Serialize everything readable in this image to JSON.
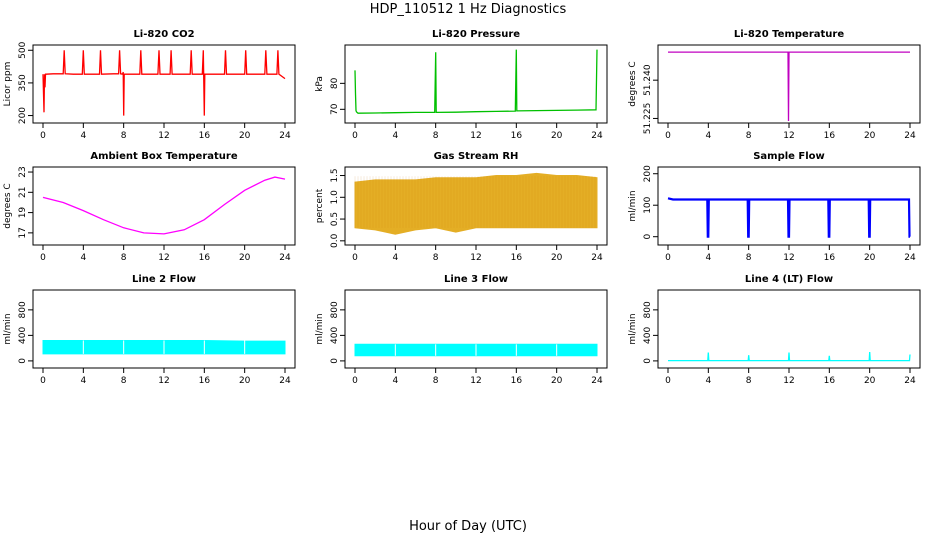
{
  "title": "HDP_110512  1 Hz Diagnostics",
  "xlabel": "Hour of Day (UTC)",
  "chart_data": [
    {
      "type": "line",
      "title": "Li-820 CO2",
      "ylabel": "Licor ppm",
      "xlim": [
        0,
        24
      ],
      "ylim": [
        175,
        515
      ],
      "xticks": [
        0,
        4,
        8,
        12,
        16,
        20,
        24
      ],
      "yticks": [
        200,
        350,
        500
      ],
      "ytick_labels": [
        "200",
        "350",
        "500"
      ],
      "color": "#ff0000",
      "series": [
        {
          "x": [
            0,
            0.1,
            0.15,
            0.2,
            0.25,
            0.3,
            1.0,
            2.0,
            2.1,
            2.2,
            3.0,
            3.9,
            4.0,
            4.1,
            5.0,
            5.6,
            5.7,
            5.8,
            7.0,
            7.5,
            7.6,
            7.7,
            7.9,
            7.95,
            8.0,
            8.05,
            9.0,
            9.6,
            9.7,
            9.8,
            11.0,
            11.4,
            11.5,
            11.6,
            12.6,
            12.7,
            12.8,
            14.0,
            14.6,
            14.7,
            14.8,
            15.8,
            15.9,
            16.0,
            16.05,
            17.0,
            18.0,
            18.1,
            18.2,
            19.5,
            20.0,
            20.1,
            20.2,
            21.0,
            22.0,
            22.1,
            22.2,
            23.2,
            23.3,
            23.4,
            24.0
          ],
          "y": [
            390,
            215,
            390,
            330,
            390,
            390,
            392,
            392,
            500,
            392,
            390,
            390,
            500,
            390,
            390,
            390,
            500,
            390,
            392,
            392,
            500,
            392,
            390,
            400,
            200,
            390,
            390,
            390,
            500,
            390,
            390,
            390,
            500,
            390,
            390,
            500,
            390,
            390,
            390,
            500,
            390,
            390,
            500,
            200,
            390,
            390,
            390,
            500,
            390,
            390,
            390,
            500,
            390,
            390,
            390,
            500,
            390,
            390,
            500,
            390,
            370
          ]
        }
      ]
    },
    {
      "type": "line",
      "title": "Li-820 Pressure",
      "ylabel": "kPa",
      "xlim": [
        0,
        24
      ],
      "ylim": [
        65.5,
        94
      ],
      "xticks": [
        0,
        4,
        8,
        12,
        16,
        20,
        24
      ],
      "yticks": [
        70,
        80
      ],
      "ytick_labels": [
        "70",
        "80"
      ],
      "color": "#00c000",
      "series": [
        {
          "x": [
            0,
            0.05,
            0.1,
            0.15,
            0.3,
            2,
            4,
            6,
            7.9,
            8.0,
            8.05,
            10,
            12,
            14,
            15.9,
            16.0,
            16.05,
            18,
            20,
            22,
            23.9,
            24.0
          ],
          "y": [
            85,
            76,
            69.5,
            69,
            68.5,
            68.6,
            68.7,
            68.8,
            68.8,
            92,
            68.8,
            68.9,
            69.1,
            69.2,
            69.3,
            93,
            69.4,
            69.5,
            69.6,
            69.7,
            69.8,
            93
          ]
        }
      ]
    },
    {
      "type": "line",
      "title": "Li-820 Temperature",
      "ylabel": "degrees C",
      "xlim": [
        0,
        24
      ],
      "ylim": [
        51.224,
        51.253
      ],
      "xticks": [
        0,
        4,
        8,
        12,
        16,
        20,
        24
      ],
      "yticks": [
        51.225,
        51.24
      ],
      "ytick_labels": [
        "51.225",
        "51.240"
      ],
      "color": "#c000c0",
      "series": [
        {
          "x": [
            0,
            11.9,
            11.95,
            12.0,
            24.0
          ],
          "y": [
            51.251,
            51.251,
            51.224,
            51.251,
            51.251
          ]
        }
      ]
    },
    {
      "type": "line",
      "title": "Ambient Box Temperature",
      "ylabel": "degrees C",
      "xlim": [
        0,
        24
      ],
      "ylim": [
        16,
        23.3
      ],
      "xticks": [
        0,
        4,
        8,
        12,
        16,
        20,
        24
      ],
      "yticks": [
        17,
        19,
        21,
        23
      ],
      "ytick_labels": [
        "17",
        "19",
        "21",
        "23"
      ],
      "color": "#ff00ff",
      "series": [
        {
          "x": [
            0,
            2,
            4,
            6,
            8,
            10,
            12,
            14,
            16,
            18,
            20,
            22,
            23,
            24
          ],
          "y": [
            20.5,
            20.0,
            19.2,
            18.3,
            17.5,
            17.0,
            16.9,
            17.3,
            18.3,
            19.8,
            21.2,
            22.2,
            22.5,
            22.3
          ]
        }
      ]
    },
    {
      "type": "scatter",
      "title": "Gas Stream RH",
      "ylabel": "percent",
      "xlim": [
        0,
        24
      ],
      "ylim": [
        -0.05,
        1.65
      ],
      "xticks": [
        0,
        4,
        8,
        12,
        16,
        20,
        24
      ],
      "yticks": [
        0.0,
        0.5,
        1.0,
        1.5
      ],
      "ytick_labels": [
        "0.0",
        "0.5",
        "1.0",
        "1.5"
      ],
      "color": "#e0a000",
      "series": [
        {
          "x": [
            0,
            2,
            4,
            6,
            8,
            10,
            12,
            14,
            16,
            18,
            20,
            22,
            24
          ],
          "ymin": [
            0.3,
            0.25,
            0.15,
            0.25,
            0.3,
            0.2,
            0.3,
            0.3,
            0.3,
            0.3,
            0.3,
            0.3,
            0.3
          ],
          "ymax": [
            1.35,
            1.4,
            1.4,
            1.4,
            1.45,
            1.45,
            1.45,
            1.5,
            1.5,
            1.55,
            1.5,
            1.5,
            1.45
          ]
        }
      ]
    },
    {
      "type": "line",
      "title": "Sample Flow",
      "ylabel": "ml/min",
      "xlim": [
        0,
        24
      ],
      "ylim": [
        -20,
        215
      ],
      "xticks": [
        0,
        4,
        8,
        12,
        16,
        20,
        24
      ],
      "yticks": [
        0,
        100,
        200
      ],
      "ytick_labels": [
        "0",
        "100",
        "200"
      ],
      "color": "#0000ff",
      "series": [
        {
          "x": [
            0,
            0.5,
            3.9,
            3.95,
            4.0,
            4.05,
            7.9,
            7.95,
            8.0,
            8.05,
            11.9,
            11.95,
            12.0,
            12.05,
            15.9,
            15.95,
            16.0,
            16.05,
            19.9,
            19.95,
            20.0,
            20.05,
            23.9,
            23.95,
            24.0
          ],
          "y": [
            122,
            118,
            118,
            0,
            0,
            118,
            118,
            0,
            0,
            118,
            118,
            0,
            0,
            118,
            118,
            0,
            0,
            118,
            118,
            0,
            0,
            118,
            118,
            0,
            0
          ]
        }
      ]
    },
    {
      "type": "area",
      "title": "Line 2 Flow",
      "ylabel": "ml/min",
      "xlim": [
        0,
        24
      ],
      "ylim": [
        -80,
        1080
      ],
      "xticks": [
        0,
        4,
        8,
        12,
        16,
        20,
        24
      ],
      "yticks": [
        0,
        400,
        800
      ],
      "ytick_labels": [
        "0",
        "400",
        "800"
      ],
      "color": "#00ffff",
      "series": [
        {
          "x": [
            0,
            4,
            8,
            12,
            16,
            20,
            24
          ],
          "ymin": [
            110,
            110,
            110,
            110,
            110,
            110,
            110
          ],
          "ymax": [
            320,
            320,
            320,
            320,
            320,
            310,
            310
          ]
        }
      ]
    },
    {
      "type": "area",
      "title": "Line 3 Flow",
      "ylabel": "ml/min",
      "xlim": [
        0,
        24
      ],
      "ylim": [
        -80,
        1080
      ],
      "xticks": [
        0,
        4,
        8,
        12,
        16,
        20,
        24
      ],
      "yticks": [
        0,
        400,
        800
      ],
      "ytick_labels": [
        "0",
        "400",
        "800"
      ],
      "color": "#00ffff",
      "series": [
        {
          "x": [
            0,
            4,
            8,
            12,
            16,
            20,
            24
          ],
          "ymin": [
            80,
            80,
            80,
            80,
            80,
            80,
            80
          ],
          "ymax": [
            260,
            260,
            260,
            260,
            260,
            260,
            260
          ]
        }
      ]
    },
    {
      "type": "line",
      "title": "Line 4 (LT) Flow",
      "ylabel": "ml/min",
      "xlim": [
        0,
        24
      ],
      "ylim": [
        -80,
        1080
      ],
      "xticks": [
        0,
        4,
        8,
        12,
        16,
        20,
        24
      ],
      "yticks": [
        0,
        400,
        800
      ],
      "ytick_labels": [
        "0",
        "400",
        "800"
      ],
      "color": "#00ffff",
      "series": [
        {
          "x": [
            0,
            3.95,
            4.0,
            4.05,
            7.95,
            8.0,
            8.05,
            11.95,
            12.0,
            12.05,
            15.95,
            16.0,
            16.05,
            19.95,
            20.0,
            20.05,
            23.95,
            24.0
          ],
          "y": [
            5,
            5,
            130,
            5,
            5,
            90,
            5,
            5,
            130,
            5,
            5,
            80,
            5,
            5,
            140,
            5,
            5,
            100
          ]
        }
      ]
    }
  ]
}
